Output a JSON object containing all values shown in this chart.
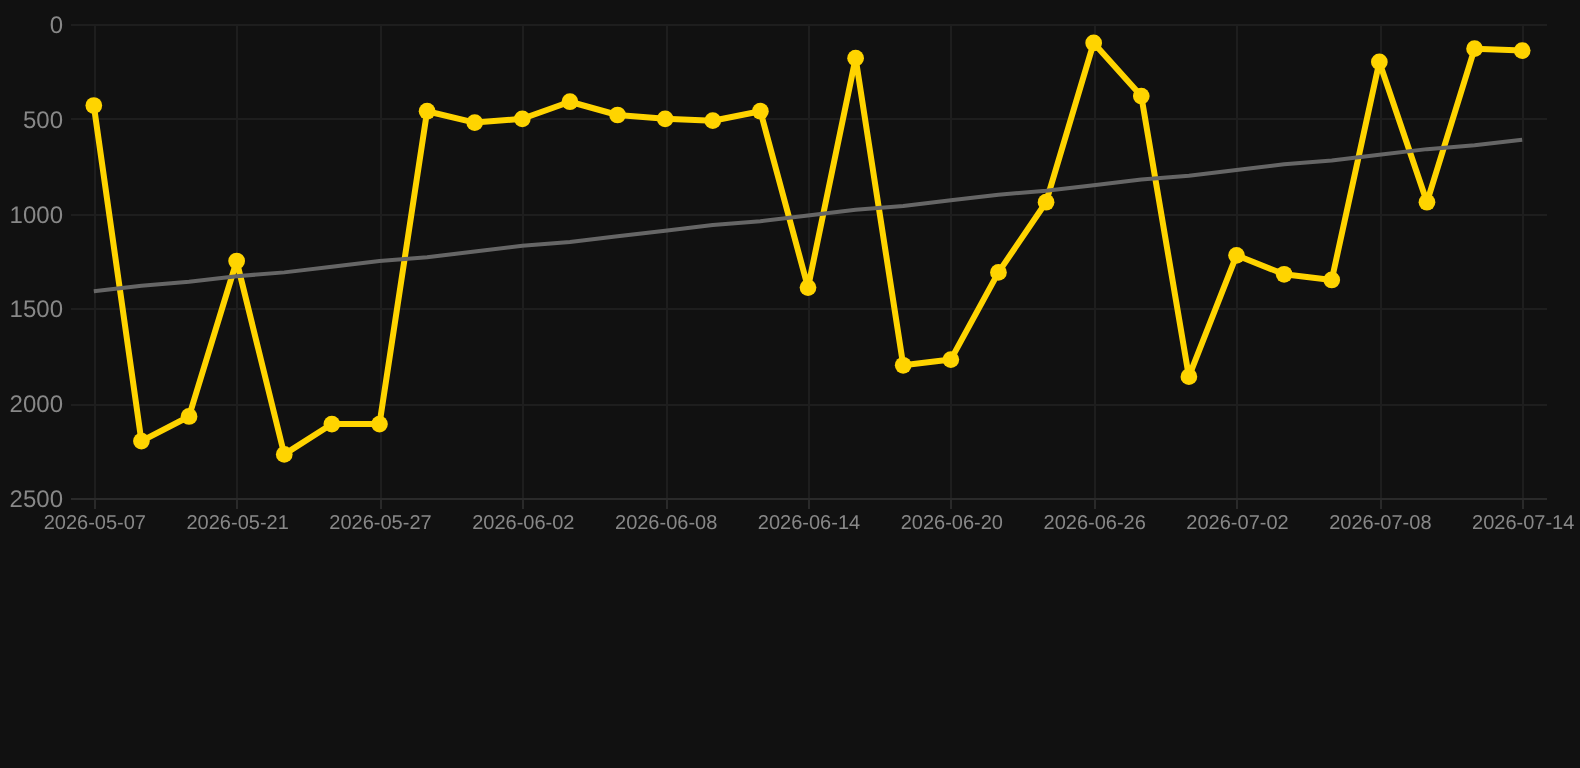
{
  "chart_data": {
    "type": "line",
    "categories": [
      "2026-05-07",
      null,
      null,
      "2026-05-21",
      null,
      null,
      "2026-05-27",
      null,
      null,
      "2026-06-02",
      null,
      null,
      "2026-06-08",
      null,
      null,
      "2026-06-14",
      null,
      null,
      "2026-06-20",
      null,
      null,
      "2026-06-26",
      null,
      null,
      "2026-07-02",
      null,
      null,
      "2026-07-08",
      null,
      null,
      "2026-07-14"
    ],
    "series": [
      {
        "color": "#ffd400",
        "marker": "circle",
        "values": [
          430,
          2200,
          2070,
          1250,
          2270,
          2110,
          2110,
          460,
          520,
          500,
          410,
          480,
          500,
          510,
          460,
          1390,
          180,
          1800,
          1770,
          1310,
          940,
          100,
          380,
          1860,
          1220,
          1320,
          1350,
          200,
          940,
          130,
          140
        ]
      },
      {
        "type": "line",
        "color": "#666666",
        "marker": "none",
        "values": [
          1410,
          1380,
          1360,
          1330,
          1310,
          1280,
          1250,
          1230,
          1200,
          1170,
          1150,
          1120,
          1090,
          1060,
          1040,
          1010,
          980,
          960,
          930,
          900,
          880,
          850,
          820,
          800,
          770,
          740,
          720,
          690,
          660,
          640,
          610
        ]
      }
    ],
    "ylim": [
      2500,
      0
    ],
    "yticks": [
      0,
      500,
      1000,
      1500,
      2000,
      2500
    ],
    "grid": true
  }
}
